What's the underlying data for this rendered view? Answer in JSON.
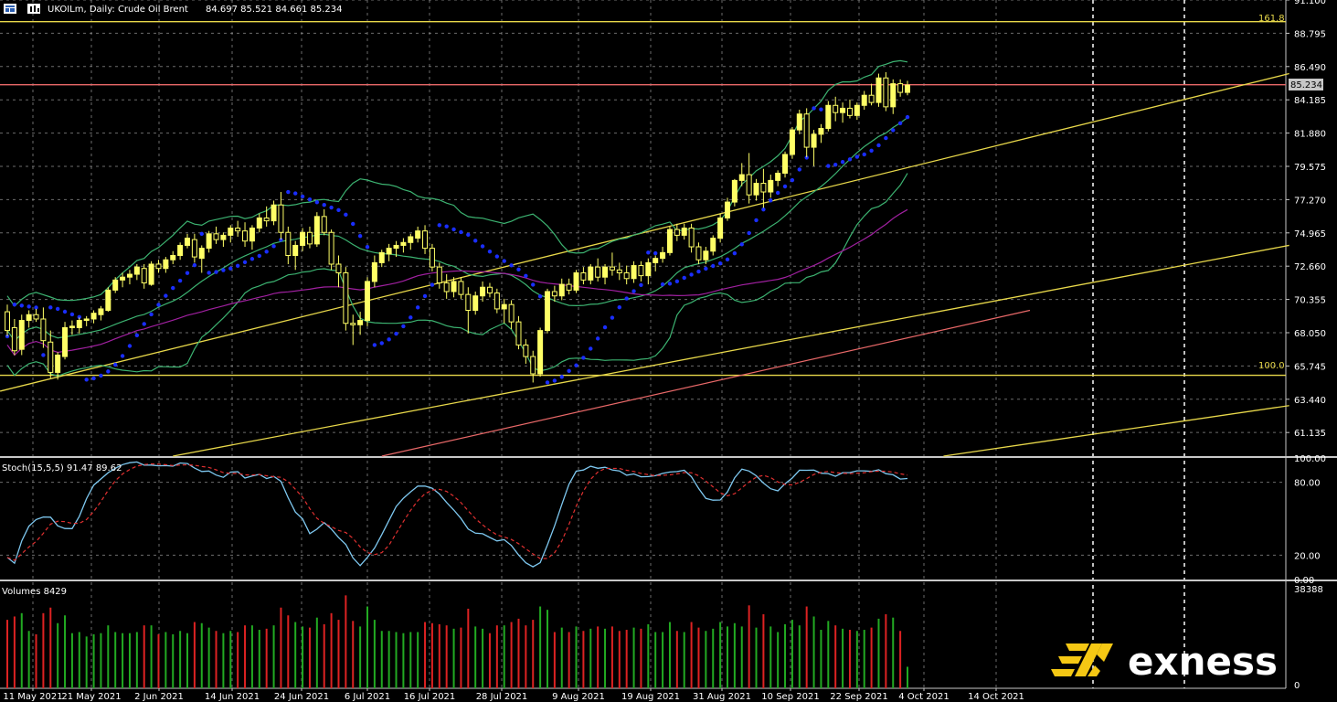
{
  "header": {
    "title": "UKOILm, Daily:  Crude Oil Brent",
    "ohlc": "84.697 85.521 84.661 85.234",
    "colors": {
      "background": "#000000",
      "grid": "#9a9a9a",
      "text": "#ffffff",
      "bull_candle": "#ffff66",
      "bear_candle": "#000000",
      "fib": "#e8d84a",
      "resistance": "#e86868",
      "band": "#3cb371",
      "ma": "#a020a0",
      "sar": "#1a2eff",
      "stoch_main": "#7ec8f0",
      "stoch_signal": "#e03030",
      "vol_up": "#22aa22",
      "vol_down": "#dd2222"
    }
  },
  "icons": [
    "chart-window-icon",
    "chart-type-icon"
  ],
  "brand": {
    "name": "exness"
  },
  "price_axis": {
    "ticks": [
      "91.100",
      "88.795",
      "86.490",
      "84.185",
      "81.880",
      "79.575",
      "77.270",
      "74.965",
      "72.660",
      "70.355",
      "68.050",
      "65.745",
      "63.440",
      "61.135"
    ],
    "current_price": "85.234"
  },
  "fib_labels": {
    "upper": "161.8",
    "lower": "100.0"
  },
  "stoch": {
    "label": "Stoch(15,5,5) 91.47 89.62",
    "ticks": [
      "100.00",
      "80.00",
      "20.00",
      "0.00"
    ]
  },
  "volumes": {
    "label": "Volumes 8429",
    "ticks": [
      "38388",
      "0"
    ]
  },
  "date_axis": [
    "11 May 2021",
    "21 May 2021",
    "2 Jun 2021",
    "14 Jun 2021",
    "24 Jun 2021",
    "6 Jul 2021",
    "16 Jul 2021",
    "28 Jul 2021",
    "9 Aug 2021",
    "19 Aug 2021",
    "31 Aug 2021",
    "10 Sep 2021",
    "22 Sep 2021",
    "4 Oct 2021",
    "14 Oct 2021"
  ],
  "chart_data": {
    "type": "candlestick",
    "symbol": "UKOILm",
    "timeframe": "Daily",
    "ylim": [
      59.5,
      91.1
    ],
    "horizontal_levels": [
      {
        "label": "161.8",
        "value": 89.6
      },
      {
        "value": 85.23
      },
      {
        "label": "100.0",
        "value": 65.1
      }
    ],
    "candles": [
      {
        "o": 69.5,
        "h": 70.0,
        "l": 67.8,
        "c": 68.2
      },
      {
        "o": 68.4,
        "h": 69.0,
        "l": 66.5,
        "c": 66.8
      },
      {
        "o": 66.9,
        "h": 69.3,
        "l": 66.5,
        "c": 68.9
      },
      {
        "o": 68.9,
        "h": 69.6,
        "l": 68.4,
        "c": 69.3
      },
      {
        "o": 69.3,
        "h": 69.7,
        "l": 68.8,
        "c": 69.0
      },
      {
        "o": 69.0,
        "h": 69.8,
        "l": 67.0,
        "c": 67.5
      },
      {
        "o": 67.4,
        "h": 68.2,
        "l": 64.9,
        "c": 65.3
      },
      {
        "o": 65.3,
        "h": 66.7,
        "l": 64.8,
        "c": 66.5
      },
      {
        "o": 66.4,
        "h": 68.8,
        "l": 66.2,
        "c": 68.4
      },
      {
        "o": 68.4,
        "h": 68.9,
        "l": 67.9,
        "c": 68.5
      },
      {
        "o": 68.4,
        "h": 69.1,
        "l": 68.0,
        "c": 68.9
      },
      {
        "o": 68.9,
        "h": 69.2,
        "l": 68.5,
        "c": 69.0
      },
      {
        "o": 69.0,
        "h": 69.6,
        "l": 68.7,
        "c": 69.4
      },
      {
        "o": 69.3,
        "h": 69.9,
        "l": 68.9,
        "c": 69.7
      },
      {
        "o": 69.6,
        "h": 71.2,
        "l": 69.5,
        "c": 71.0
      },
      {
        "o": 71.0,
        "h": 71.9,
        "l": 70.8,
        "c": 71.7
      },
      {
        "o": 71.7,
        "h": 72.2,
        "l": 71.2,
        "c": 71.9
      },
      {
        "o": 71.9,
        "h": 72.4,
        "l": 71.4,
        "c": 72.1
      },
      {
        "o": 72.1,
        "h": 72.8,
        "l": 71.7,
        "c": 72.6
      },
      {
        "o": 72.5,
        "h": 72.8,
        "l": 71.1,
        "c": 71.5
      },
      {
        "o": 71.4,
        "h": 73.0,
        "l": 71.3,
        "c": 72.8
      },
      {
        "o": 72.8,
        "h": 73.1,
        "l": 72.2,
        "c": 72.5
      },
      {
        "o": 72.5,
        "h": 73.3,
        "l": 72.2,
        "c": 73.1
      },
      {
        "o": 73.1,
        "h": 73.7,
        "l": 72.8,
        "c": 73.4
      },
      {
        "o": 73.4,
        "h": 74.3,
        "l": 73.1,
        "c": 74.1
      },
      {
        "o": 74.1,
        "h": 74.9,
        "l": 73.9,
        "c": 74.6
      },
      {
        "o": 74.5,
        "h": 74.9,
        "l": 72.9,
        "c": 73.3
      },
      {
        "o": 73.2,
        "h": 74.1,
        "l": 72.2,
        "c": 73.9
      },
      {
        "o": 73.9,
        "h": 75.1,
        "l": 73.6,
        "c": 74.9
      },
      {
        "o": 74.9,
        "h": 75.4,
        "l": 74.2,
        "c": 74.5
      },
      {
        "o": 74.5,
        "h": 75.0,
        "l": 74.0,
        "c": 74.8
      },
      {
        "o": 74.8,
        "h": 75.5,
        "l": 74.3,
        "c": 75.3
      },
      {
        "o": 75.3,
        "h": 75.8,
        "l": 74.7,
        "c": 75.1
      },
      {
        "o": 75.1,
        "h": 75.7,
        "l": 74.0,
        "c": 74.4
      },
      {
        "o": 74.4,
        "h": 75.5,
        "l": 73.8,
        "c": 75.3
      },
      {
        "o": 75.3,
        "h": 76.3,
        "l": 75.0,
        "c": 76.0
      },
      {
        "o": 76.0,
        "h": 76.8,
        "l": 75.4,
        "c": 75.8
      },
      {
        "o": 75.8,
        "h": 77.2,
        "l": 75.5,
        "c": 76.9
      },
      {
        "o": 76.9,
        "h": 77.8,
        "l": 74.5,
        "c": 75.0
      },
      {
        "o": 75.0,
        "h": 75.4,
        "l": 72.8,
        "c": 73.4
      },
      {
        "o": 73.4,
        "h": 74.4,
        "l": 72.4,
        "c": 74.1
      },
      {
        "o": 74.1,
        "h": 75.3,
        "l": 73.7,
        "c": 75.0
      },
      {
        "o": 75.0,
        "h": 75.4,
        "l": 73.9,
        "c": 74.2
      },
      {
        "o": 74.2,
        "h": 76.4,
        "l": 74.0,
        "c": 76.1
      },
      {
        "o": 76.1,
        "h": 76.6,
        "l": 74.8,
        "c": 75.0
      },
      {
        "o": 75.0,
        "h": 75.2,
        "l": 72.4,
        "c": 72.8
      },
      {
        "o": 72.8,
        "h": 73.4,
        "l": 71.2,
        "c": 72.2
      },
      {
        "o": 72.2,
        "h": 72.6,
        "l": 68.2,
        "c": 68.7
      },
      {
        "o": 68.7,
        "h": 69.3,
        "l": 67.2,
        "c": 68.6
      },
      {
        "o": 68.6,
        "h": 69.5,
        "l": 67.9,
        "c": 68.9
      },
      {
        "o": 68.9,
        "h": 71.9,
        "l": 68.5,
        "c": 71.6
      },
      {
        "o": 71.6,
        "h": 73.4,
        "l": 71.2,
        "c": 72.9
      },
      {
        "o": 72.9,
        "h": 73.8,
        "l": 72.6,
        "c": 73.6
      },
      {
        "o": 73.5,
        "h": 74.2,
        "l": 73.0,
        "c": 73.9
      },
      {
        "o": 73.9,
        "h": 74.4,
        "l": 73.3,
        "c": 74.1
      },
      {
        "o": 74.1,
        "h": 74.6,
        "l": 73.6,
        "c": 74.3
      },
      {
        "o": 74.3,
        "h": 74.9,
        "l": 73.8,
        "c": 74.7
      },
      {
        "o": 74.6,
        "h": 75.4,
        "l": 74.3,
        "c": 75.1
      },
      {
        "o": 75.1,
        "h": 75.5,
        "l": 73.5,
        "c": 73.9
      },
      {
        "o": 73.9,
        "h": 74.2,
        "l": 72.3,
        "c": 72.6
      },
      {
        "o": 72.6,
        "h": 72.9,
        "l": 71.1,
        "c": 71.5
      },
      {
        "o": 71.5,
        "h": 72.1,
        "l": 70.4,
        "c": 70.9
      },
      {
        "o": 70.9,
        "h": 71.9,
        "l": 70.5,
        "c": 71.6
      },
      {
        "o": 71.6,
        "h": 71.9,
        "l": 70.4,
        "c": 70.7
      },
      {
        "o": 70.7,
        "h": 71.2,
        "l": 68.0,
        "c": 69.6
      },
      {
        "o": 69.6,
        "h": 70.9,
        "l": 69.3,
        "c": 70.6
      },
      {
        "o": 70.6,
        "h": 71.6,
        "l": 70.2,
        "c": 71.2
      },
      {
        "o": 71.2,
        "h": 71.5,
        "l": 70.5,
        "c": 70.8
      },
      {
        "o": 70.8,
        "h": 71.1,
        "l": 69.4,
        "c": 69.7
      },
      {
        "o": 69.7,
        "h": 70.4,
        "l": 68.7,
        "c": 70.0
      },
      {
        "o": 70.0,
        "h": 70.3,
        "l": 68.3,
        "c": 68.8
      },
      {
        "o": 68.8,
        "h": 69.2,
        "l": 66.9,
        "c": 67.2
      },
      {
        "o": 67.2,
        "h": 67.6,
        "l": 65.9,
        "c": 66.4
      },
      {
        "o": 66.4,
        "h": 66.8,
        "l": 64.6,
        "c": 65.2
      },
      {
        "o": 65.2,
        "h": 68.4,
        "l": 65.0,
        "c": 68.2
      },
      {
        "o": 68.2,
        "h": 71.1,
        "l": 68.0,
        "c": 70.9
      },
      {
        "o": 70.9,
        "h": 71.3,
        "l": 70.2,
        "c": 70.6
      },
      {
        "o": 70.6,
        "h": 71.8,
        "l": 70.3,
        "c": 71.4
      },
      {
        "o": 71.4,
        "h": 71.8,
        "l": 70.7,
        "c": 71.0
      },
      {
        "o": 71.0,
        "h": 72.4,
        "l": 70.8,
        "c": 72.2
      },
      {
        "o": 72.2,
        "h": 72.6,
        "l": 71.4,
        "c": 71.7
      },
      {
        "o": 71.7,
        "h": 72.8,
        "l": 71.4,
        "c": 72.6
      },
      {
        "o": 72.6,
        "h": 73.2,
        "l": 71.6,
        "c": 71.9
      },
      {
        "o": 71.9,
        "h": 72.8,
        "l": 71.4,
        "c": 72.6
      },
      {
        "o": 72.6,
        "h": 73.6,
        "l": 72.0,
        "c": 72.4
      },
      {
        "o": 72.4,
        "h": 72.9,
        "l": 71.7,
        "c": 72.2
      },
      {
        "o": 72.2,
        "h": 72.7,
        "l": 71.4,
        "c": 71.8
      },
      {
        "o": 71.8,
        "h": 73.0,
        "l": 71.5,
        "c": 72.7
      },
      {
        "o": 72.7,
        "h": 73.0,
        "l": 71.6,
        "c": 72.0
      },
      {
        "o": 72.0,
        "h": 73.2,
        "l": 71.4,
        "c": 72.9
      },
      {
        "o": 72.9,
        "h": 73.4,
        "l": 72.3,
        "c": 73.2
      },
      {
        "o": 73.2,
        "h": 74.0,
        "l": 72.9,
        "c": 73.6
      },
      {
        "o": 73.6,
        "h": 75.4,
        "l": 73.4,
        "c": 75.2
      },
      {
        "o": 75.2,
        "h": 75.6,
        "l": 74.4,
        "c": 74.8
      },
      {
        "o": 74.8,
        "h": 75.6,
        "l": 74.5,
        "c": 75.3
      },
      {
        "o": 75.3,
        "h": 75.6,
        "l": 73.6,
        "c": 74.0
      },
      {
        "o": 74.0,
        "h": 74.3,
        "l": 72.8,
        "c": 73.1
      },
      {
        "o": 73.1,
        "h": 74.0,
        "l": 72.8,
        "c": 73.7
      },
      {
        "o": 73.7,
        "h": 74.8,
        "l": 73.4,
        "c": 74.6
      },
      {
        "o": 74.6,
        "h": 76.3,
        "l": 74.3,
        "c": 76.0
      },
      {
        "o": 76.0,
        "h": 77.4,
        "l": 75.8,
        "c": 77.1
      },
      {
        "o": 77.1,
        "h": 78.7,
        "l": 76.8,
        "c": 78.6
      },
      {
        "o": 78.6,
        "h": 79.8,
        "l": 78.2,
        "c": 79.0
      },
      {
        "o": 79.0,
        "h": 80.5,
        "l": 77.0,
        "c": 77.6
      },
      {
        "o": 77.6,
        "h": 78.7,
        "l": 77.2,
        "c": 78.4
      },
      {
        "o": 78.4,
        "h": 79.4,
        "l": 76.7,
        "c": 77.8
      },
      {
        "o": 77.8,
        "h": 79.0,
        "l": 77.4,
        "c": 78.6
      },
      {
        "o": 78.6,
        "h": 79.3,
        "l": 78.2,
        "c": 79.1
      },
      {
        "o": 79.1,
        "h": 80.6,
        "l": 78.8,
        "c": 80.4
      },
      {
        "o": 80.4,
        "h": 82.3,
        "l": 80.1,
        "c": 82.1
      },
      {
        "o": 82.1,
        "h": 83.5,
        "l": 81.8,
        "c": 83.2
      },
      {
        "o": 83.2,
        "h": 83.6,
        "l": 80.2,
        "c": 80.9
      },
      {
        "o": 80.9,
        "h": 82.1,
        "l": 79.6,
        "c": 81.8
      },
      {
        "o": 81.8,
        "h": 82.5,
        "l": 81.2,
        "c": 82.2
      },
      {
        "o": 82.2,
        "h": 84.1,
        "l": 82.0,
        "c": 83.8
      },
      {
        "o": 83.8,
        "h": 84.4,
        "l": 82.7,
        "c": 83.3
      },
      {
        "o": 83.3,
        "h": 84.0,
        "l": 82.6,
        "c": 83.6
      },
      {
        "o": 83.6,
        "h": 84.2,
        "l": 82.9,
        "c": 83.1
      },
      {
        "o": 83.1,
        "h": 84.0,
        "l": 82.8,
        "c": 83.8
      },
      {
        "o": 83.8,
        "h": 84.8,
        "l": 83.5,
        "c": 84.5
      },
      {
        "o": 84.5,
        "h": 85.3,
        "l": 83.8,
        "c": 84.0
      },
      {
        "o": 84.0,
        "h": 86.0,
        "l": 83.7,
        "c": 85.7
      },
      {
        "o": 85.7,
        "h": 86.1,
        "l": 83.4,
        "c": 83.7
      },
      {
        "o": 83.7,
        "h": 85.6,
        "l": 83.2,
        "c": 85.3
      },
      {
        "o": 85.3,
        "h": 85.6,
        "l": 84.4,
        "c": 84.7
      },
      {
        "o": 84.7,
        "h": 85.5,
        "l": 84.5,
        "c": 85.2
      }
    ],
    "stochastic": {
      "params": "15,5,5",
      "main": 91.47,
      "signal": 89.62,
      "ylim": [
        0,
        100
      ]
    },
    "volumes": {
      "last": 8429,
      "ymax": 38388
    }
  }
}
